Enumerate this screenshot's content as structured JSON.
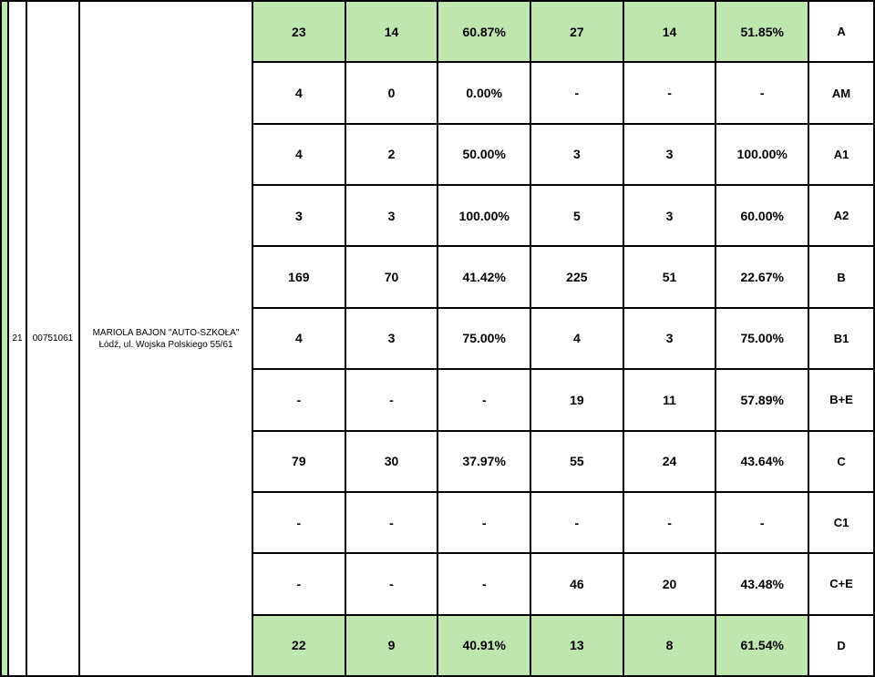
{
  "colors": {
    "highlight": "#c0e6b0",
    "background": "#ffffff",
    "border": "#000000"
  },
  "left": {
    "row_num": "21",
    "code": "00751061",
    "desc_line1": "MARIOLA BAJON \"AUTO-SZKOŁA\"",
    "desc_line2": "Łódź, ul. Wojska Polskiego 55/61"
  },
  "rows": [
    {
      "c1": "23",
      "c2": "14",
      "c3": "60.87%",
      "c4": "27",
      "c5": "14",
      "c6": "51.85%",
      "cat": "A",
      "hl": [
        0,
        1,
        2,
        3,
        4,
        5
      ]
    },
    {
      "c1": "4",
      "c2": "0",
      "c3": "0.00%",
      "c4": "-",
      "c5": "-",
      "c6": "-",
      "cat": "AM",
      "hl": []
    },
    {
      "c1": "4",
      "c2": "2",
      "c3": "50.00%",
      "c4": "3",
      "c5": "3",
      "c6": "100.00%",
      "cat": "A1",
      "hl": []
    },
    {
      "c1": "3",
      "c2": "3",
      "c3": "100.00%",
      "c4": "5",
      "c5": "3",
      "c6": "60.00%",
      "cat": "A2",
      "hl": []
    },
    {
      "c1": "169",
      "c2": "70",
      "c3": "41.42%",
      "c4": "225",
      "c5": "51",
      "c6": "22.67%",
      "cat": "B",
      "hl": []
    },
    {
      "c1": "4",
      "c2": "3",
      "c3": "75.00%",
      "c4": "4",
      "c5": "3",
      "c6": "75.00%",
      "cat": "B1",
      "hl": []
    },
    {
      "c1": "-",
      "c2": "-",
      "c3": "-",
      "c4": "19",
      "c5": "11",
      "c6": "57.89%",
      "cat": "B+E",
      "hl": []
    },
    {
      "c1": "79",
      "c2": "30",
      "c3": "37.97%",
      "c4": "55",
      "c5": "24",
      "c6": "43.64%",
      "cat": "C",
      "hl": []
    },
    {
      "c1": "-",
      "c2": "-",
      "c3": "-",
      "c4": "-",
      "c5": "-",
      "c6": "-",
      "cat": "C1",
      "hl": []
    },
    {
      "c1": "-",
      "c2": "-",
      "c3": "-",
      "c4": "46",
      "c5": "20",
      "c6": "43.48%",
      "cat": "C+E",
      "hl": []
    },
    {
      "c1": "22",
      "c2": "9",
      "c3": "40.91%",
      "c4": "13",
      "c5": "8",
      "c6": "61.54%",
      "cat": "D",
      "hl": [
        0,
        1,
        2,
        3,
        4,
        5
      ]
    }
  ]
}
